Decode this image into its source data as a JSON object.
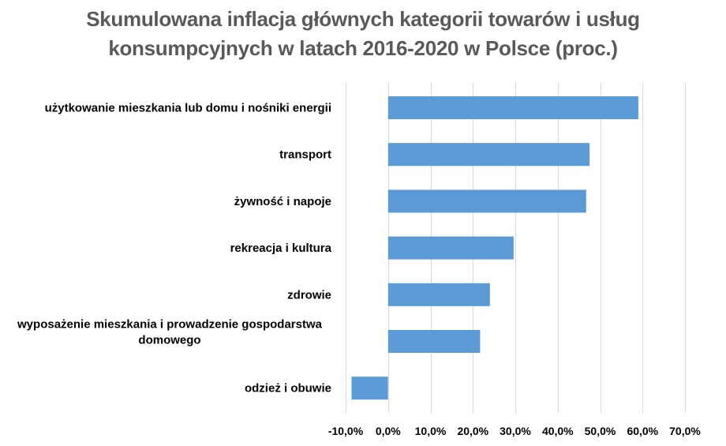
{
  "chart_data": {
    "type": "bar",
    "orientation": "horizontal",
    "title_lines": [
      "Skumulowana inflacja głównych kategorii towarów i usług",
      "konsumpcyjnych w latach 2016-2020 w Polsce (proc.)"
    ],
    "categories": [
      [
        "użytkowanie mieszkania lub domu i nośniki energii"
      ],
      [
        "transport"
      ],
      [
        "żywność i napoje"
      ],
      [
        "rekreacja i kultura"
      ],
      [
        "zdrowie"
      ],
      [
        "wyposażenie mieszkania i prowadzenie gospodarstwa",
        "domowego"
      ],
      [
        "odzież i obuwie"
      ]
    ],
    "values": [
      59.0,
      47.5,
      46.7,
      29.6,
      24.0,
      21.7,
      -8.6
    ],
    "xlim": [
      -10,
      70
    ],
    "ticks": [
      "-10,0%",
      "0,0%",
      "10,0%",
      "20,0%",
      "30,0%",
      "40,0%",
      "50,0%",
      "60,0%",
      "70,0%"
    ],
    "tick_values": [
      -10,
      0,
      10,
      20,
      30,
      40,
      50,
      60,
      70
    ],
    "bar_color": "#5b9bd5",
    "gridline_color": "#d9d9d9",
    "grid": true,
    "legend": "none"
  }
}
